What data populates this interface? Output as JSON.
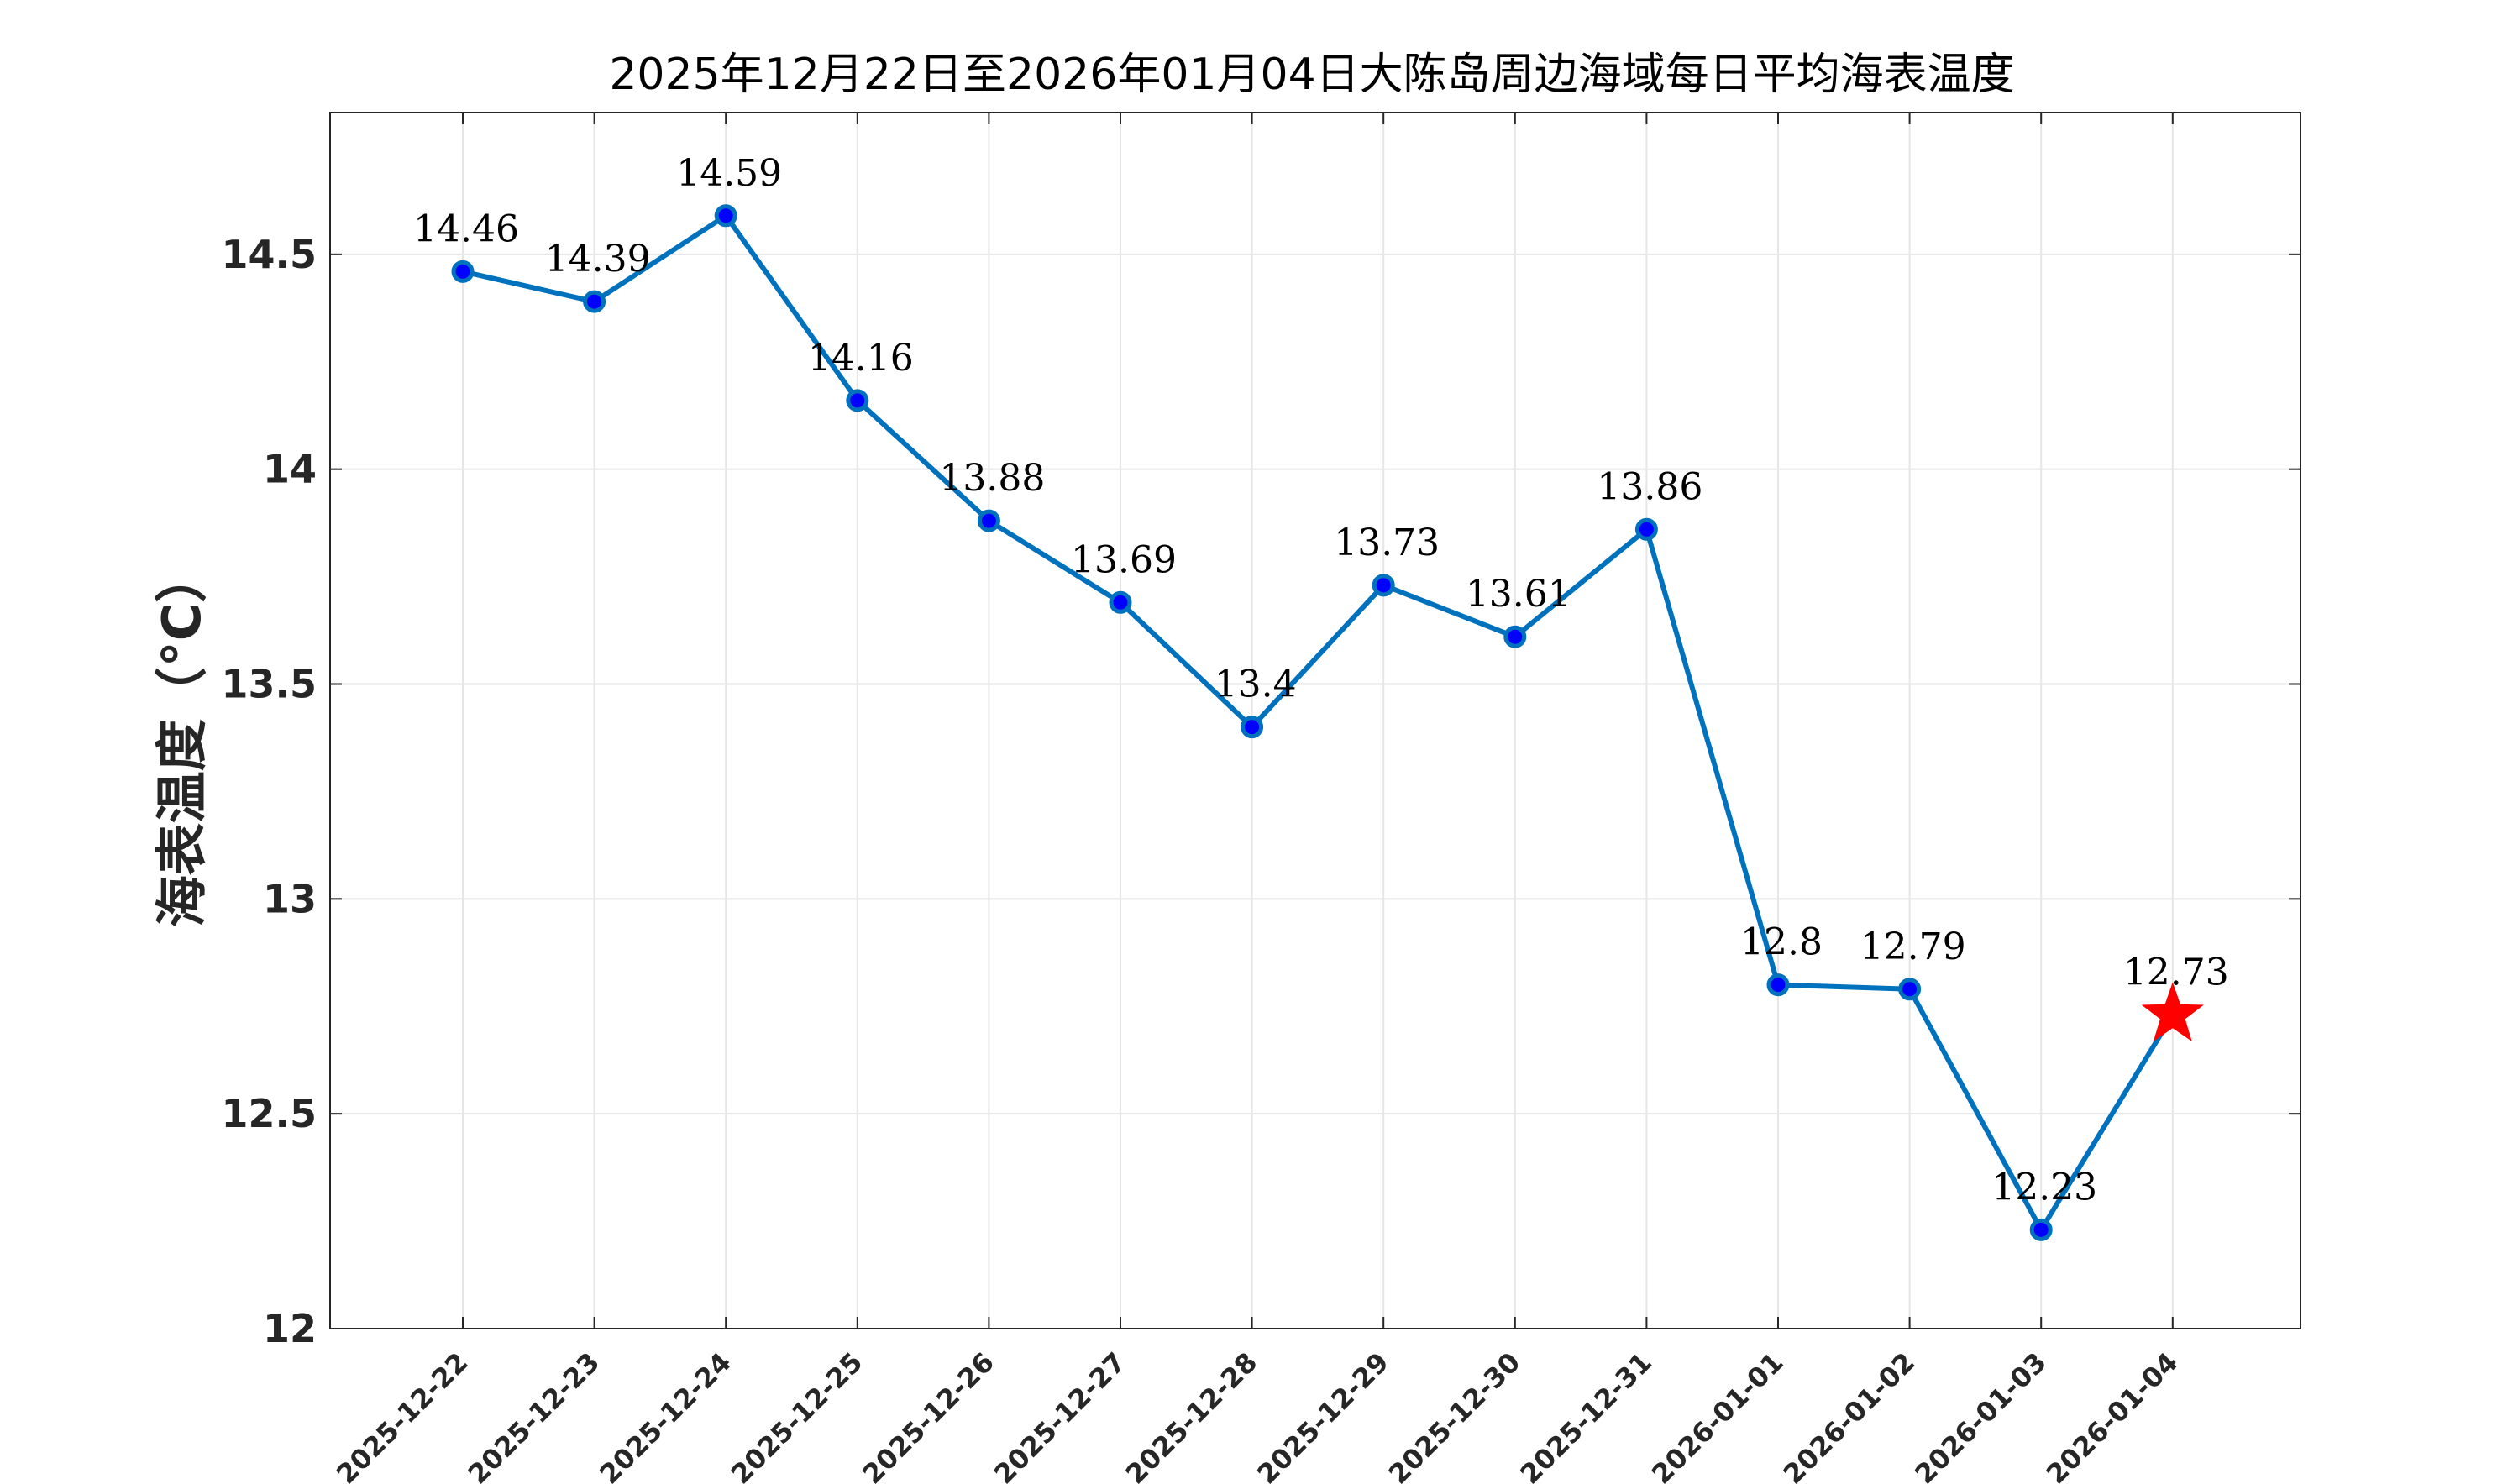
{
  "chart_data": {
    "type": "line",
    "title": "2025年12月22日至2026年01月04日大陈岛周边海域每日平均海表温度",
    "xlabel": "",
    "ylabel": "海表温度（°C）",
    "ylim": [
      12,
      14.83
    ],
    "yticks": [
      12,
      12.5,
      13,
      13.5,
      14,
      14.5
    ],
    "ytick_labels": [
      "12",
      "12.5",
      "13",
      "13.5",
      "14",
      "14.5"
    ],
    "grid": true,
    "categories": [
      "2025-12-22",
      "2025-12-23",
      "2025-12-24",
      "2025-12-25",
      "2025-12-26",
      "2025-12-27",
      "2025-12-28",
      "2025-12-29",
      "2025-12-30",
      "2025-12-31",
      "2026-01-01",
      "2026-01-02",
      "2026-01-03",
      "2026-01-04"
    ],
    "values": [
      14.46,
      14.39,
      14.59,
      14.16,
      13.88,
      13.69,
      13.4,
      13.73,
      13.61,
      13.86,
      12.8,
      12.79,
      12.23,
      12.73
    ],
    "data_labels": [
      "14.46",
      "14.39",
      "14.59",
      "14.16",
      "13.88",
      "13.69",
      "13.4",
      "13.73",
      "13.61",
      "13.86",
      "12.8",
      "12.79",
      "12.23",
      "12.73"
    ],
    "highlight_last_point": "star",
    "colors": {
      "line": "#0072BD",
      "marker_fill": "#0000FF",
      "marker_edge": "#0072BD",
      "star": "#FF0000",
      "grid": "#E6E6E6",
      "axes": "#262626"
    }
  }
}
